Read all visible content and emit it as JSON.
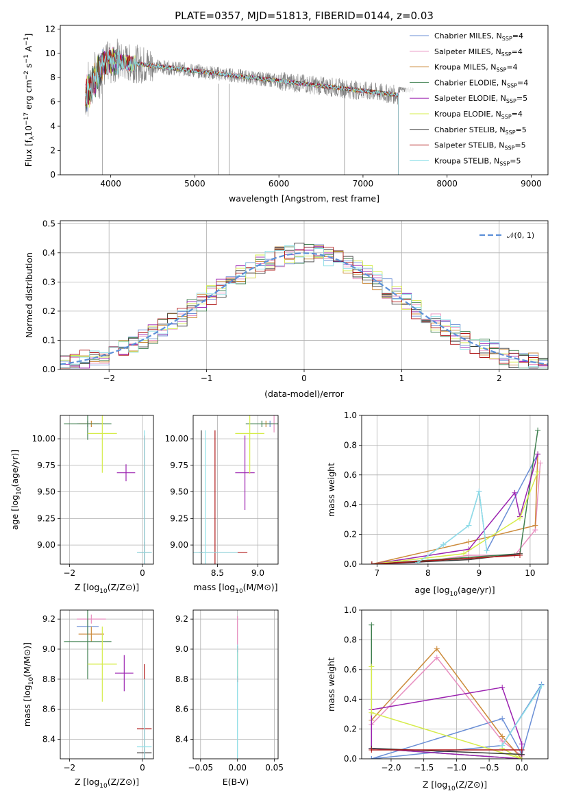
{
  "title": "PLATE=0357, MJD=51813, FIBERID=0144, z=0.03",
  "colors": {
    "Chabrier MILES": "#6b8fd6",
    "Salpeter MILES": "#e88fc0",
    "Kroupa MILES": "#cc8a3a",
    "Chabrier ELODIE": "#3f7f4f",
    "Salpeter ELODIE": "#9b22b0",
    "Kroupa ELODIE": "#d6ec4a",
    "Chabrier STELIB": "#3a3a3a",
    "Salpeter STELIB": "#b01818",
    "Kroupa STELIB": "#8fe0e8",
    "data": "#808080",
    "normal": "#5b8fd8",
    "orange_model": "#e07830"
  },
  "chart_data": [
    {
      "id": "spectrum",
      "type": "line",
      "xlabel": "wavelength [Angstrom, rest frame]",
      "ylabel_main": "Flux [f",
      "ylabel_sub": "λ",
      "ylabel_rest": "10",
      "ylabel_exp": "−17",
      "ylabel_units": " erg cm",
      "ylabel_units_exp": "−2",
      "ylabel_units2": " s",
      "ylabel_units2_exp": "−1",
      "ylabel_units3": " A",
      "ylabel_units3_exp": "−1",
      "ylabel_end": "]",
      "xlim": [
        3400,
        9200
      ],
      "ylim": [
        0,
        12.3
      ],
      "xticks": [
        "4000",
        "5000",
        "6000",
        "7000",
        "8000",
        "9000"
      ],
      "xtick_values": [
        4000,
        5000,
        6000,
        7000,
        8000,
        9000
      ],
      "yticks": [
        "0",
        "2",
        "4",
        "6",
        "8",
        "10",
        "12"
      ],
      "ytick_values": [
        0,
        2,
        4,
        6,
        8,
        10,
        12
      ],
      "data_range": [
        3700,
        7600
      ],
      "model_cutoff": 7420,
      "absorption_lines": [
        3900,
        5280,
        5410,
        6780
      ],
      "legend": [
        {
          "name": "Chabrier MILES",
          "nssp": "4"
        },
        {
          "name": "Salpeter MILES",
          "nssp": "4"
        },
        {
          "name": "Kroupa MILES",
          "nssp": "4"
        },
        {
          "name": "Chabrier ELODIE",
          "nssp": "4"
        },
        {
          "name": "Salpeter ELODIE",
          "nssp": "5"
        },
        {
          "name": "Kroupa ELODIE",
          "nssp": "4"
        },
        {
          "name": "Chabrier STELIB",
          "nssp": "5"
        },
        {
          "name": "Salpeter STELIB",
          "nssp": "5"
        },
        {
          "name": "Kroupa STELIB",
          "nssp": "5"
        }
      ],
      "legend_label_main": "N",
      "legend_label_sub": "SSP"
    },
    {
      "id": "residuals",
      "type": "step",
      "xlabel": "(data-model)/error",
      "ylabel": "Normed distribution",
      "xlim": [
        -2.5,
        2.5
      ],
      "ylim": [
        0,
        0.51
      ],
      "xticks": [
        "−2",
        "−1",
        "0",
        "1",
        "2"
      ],
      "xtick_values": [
        -2,
        -1,
        0,
        1,
        2
      ],
      "yticks": [
        "0.0",
        "0.1",
        "0.2",
        "0.3",
        "0.4",
        "0.5"
      ],
      "ytick_values": [
        0,
        0.1,
        0.2,
        0.3,
        0.4,
        0.5
      ],
      "bin_width": 0.1,
      "legend": "𝒩(0, 1)",
      "legend_position": "top-right",
      "grid": true
    },
    {
      "id": "age-vs-z",
      "type": "scatter",
      "xlabel_main": "Z [log",
      "xlabel_sub": "10",
      "xlabel_end": "(Z/Z⊙)]",
      "ylabel_main": "age  [log",
      "ylabel_sub": "10",
      "ylabel_end": "(age/yr)]",
      "xlim": [
        -2.25,
        0.3
      ],
      "ylim": [
        8.82,
        10.22
      ],
      "xticks": [
        "−2",
        "0"
      ],
      "xtick_values": [
        -2,
        0
      ],
      "yticks": [
        "9.00",
        "9.25",
        "9.50",
        "9.75",
        "10.00"
      ],
      "ytick_values": [
        9.0,
        9.25,
        9.5,
        9.75,
        10.0
      ],
      "points": [
        {
          "model": "Chabrier MILES",
          "x": -1.5,
          "y": 10.14,
          "xerr": 0.3,
          "yerr": 0.03
        },
        {
          "model": "Salpeter MILES",
          "x": -1.5,
          "y": 10.14,
          "xerr": 0.25,
          "yerr": 0.03
        },
        {
          "model": "Kroupa MILES",
          "x": -1.4,
          "y": 10.14,
          "xerr": 0.35,
          "yerr": 0.03
        },
        {
          "model": "Chabrier ELODIE",
          "x": -1.5,
          "y": 10.14,
          "xerr": 0.65,
          "yerr": 0.15
        },
        {
          "model": "Salpeter ELODIE",
          "x": -0.45,
          "y": 9.68,
          "xerr": 0.25,
          "yerr": 0.08
        },
        {
          "model": "Kroupa ELODIE",
          "x": -1.1,
          "y": 10.05,
          "xerr": 0.4,
          "yerr": 0.37
        },
        {
          "model": "Chabrier STELIB",
          "x": 0.05,
          "y": 8.93,
          "xerr": 0.2,
          "yerr": 0.1
        },
        {
          "model": "Salpeter STELIB",
          "x": 0.05,
          "y": 8.93,
          "xerr": 0.15,
          "yerr": 1.1
        },
        {
          "model": "Kroupa STELIB",
          "x": 0.05,
          "y": 8.93,
          "xerr": 0.2,
          "yerr": 1.15
        }
      ]
    },
    {
      "id": "age-vs-mass",
      "type": "scatter",
      "xlabel_main": "mass [log",
      "xlabel_sub": "10",
      "xlabel_end": "(M/M⊙)]",
      "xlim": [
        8.2,
        9.25
      ],
      "ylim": [
        8.82,
        10.22
      ],
      "xticks": [
        "8.5",
        "9.0"
      ],
      "xtick_values": [
        8.5,
        9.0
      ],
      "yticks": [
        "9.00",
        "9.25",
        "9.50",
        "9.75",
        "10.00"
      ],
      "ytick_values": [
        9.0,
        9.25,
        9.5,
        9.75,
        10.0
      ],
      "points": [
        {
          "model": "Chabrier MILES",
          "x": 9.15,
          "y": 10.14,
          "xerr": 0.05,
          "yerr": 0.03
        },
        {
          "model": "Salpeter MILES",
          "x": 9.2,
          "y": 10.14,
          "xerr": 0.05,
          "yerr": 0.08
        },
        {
          "model": "Kroupa MILES",
          "x": 9.1,
          "y": 10.14,
          "xerr": 0.05,
          "yerr": 0.03
        },
        {
          "model": "Chabrier ELODIE",
          "x": 9.05,
          "y": 10.14,
          "xerr": 0.2,
          "yerr": 0.03
        },
        {
          "model": "Salpeter ELODIE",
          "x": 8.84,
          "y": 9.68,
          "xerr": 0.12,
          "yerr": 0.35
        },
        {
          "model": "Kroupa ELODIE",
          "x": 8.9,
          "y": 10.05,
          "xerr": 0.18,
          "yerr": 0.38
        },
        {
          "model": "Chabrier STELIB",
          "x": 8.3,
          "y": 8.93,
          "xerr": 0.02,
          "yerr": 1.15
        },
        {
          "model": "Salpeter STELIB",
          "x": 8.47,
          "y": 8.93,
          "xerr": 0.4,
          "yerr": 1.15
        },
        {
          "model": "Kroupa STELIB",
          "x": 8.35,
          "y": 8.93,
          "xerr": 0.4,
          "yerr": 1.15
        }
      ]
    },
    {
      "id": "weight-vs-age",
      "type": "line",
      "xlabel_main": "age  [log",
      "xlabel_sub": "10",
      "xlabel_end": "(age/yr)]",
      "ylabel": "mass weight",
      "xlim": [
        6.7,
        10.35
      ],
      "ylim": [
        0,
        1.0
      ],
      "xticks": [
        "7",
        "8",
        "9",
        "10"
      ],
      "xtick_values": [
        7,
        8,
        9,
        10
      ],
      "yticks": [
        "0.0",
        "0.2",
        "0.4",
        "0.6",
        "0.8",
        "1.0"
      ],
      "ytick_values": [
        0,
        0.2,
        0.4,
        0.6,
        0.8,
        1.0
      ],
      "grid": true,
      "series": [
        {
          "model": "Chabrier MILES",
          "x": [
            7.8,
            8.3,
            8.8,
            9.0,
            9.15,
            10.15
          ],
          "y": [
            0.01,
            0.13,
            0.26,
            0.49,
            0.09,
            0.74
          ]
        },
        {
          "model": "Salpeter MILES",
          "x": [
            6.9,
            7.8,
            8.8,
            9.7,
            10.1,
            10.2
          ],
          "y": [
            0.0,
            0.01,
            0.06,
            0.06,
            0.23,
            0.68
          ]
        },
        {
          "model": "Kroupa MILES",
          "x": [
            6.9,
            8.8,
            10.1,
            10.15
          ],
          "y": [
            0.0,
            0.15,
            0.26,
            0.74
          ]
        },
        {
          "model": "Chabrier ELODIE",
          "x": [
            6.9,
            9.8,
            10.15
          ],
          "y": [
            0.0,
            0.07,
            0.9
          ]
        },
        {
          "model": "Salpeter ELODIE",
          "x": [
            6.9,
            8.8,
            9.7,
            9.8,
            10.15
          ],
          "y": [
            0.0,
            0.1,
            0.48,
            0.32,
            0.74
          ]
        },
        {
          "model": "Kroupa ELODIE",
          "x": [
            6.9,
            8.7,
            9.8,
            10.15
          ],
          "y": [
            0.0,
            0.07,
            0.31,
            0.62
          ]
        },
        {
          "model": "Chabrier STELIB",
          "x": [
            6.9,
            8.8,
            9.8
          ],
          "y": [
            0.0,
            0.03,
            0.07
          ]
        },
        {
          "model": "Salpeter STELIB",
          "x": [
            6.9,
            9.8
          ],
          "y": [
            0.0,
            0.06
          ]
        },
        {
          "model": "Kroupa STELIB",
          "x": [
            7.8,
            8.3,
            8.8,
            9.0,
            9.15
          ],
          "y": [
            0.01,
            0.13,
            0.26,
            0.49,
            0.09
          ]
        }
      ]
    },
    {
      "id": "mass-vs-z",
      "type": "scatter",
      "xlabel_main": "Z [log",
      "xlabel_sub": "10",
      "xlabel_end": "(Z/Z⊙)]",
      "ylabel_main": "mass [log",
      "ylabel_sub": "10",
      "ylabel_end": "(M/M⊙)]",
      "xlim": [
        -2.25,
        0.3
      ],
      "ylim": [
        8.27,
        9.26
      ],
      "xticks": [
        "−2",
        "0"
      ],
      "xtick_values": [
        -2,
        0
      ],
      "yticks": [
        "8.4",
        "8.6",
        "8.8",
        "9.0",
        "9.2"
      ],
      "ytick_values": [
        8.4,
        8.6,
        8.8,
        9.0,
        9.2
      ],
      "points": [
        {
          "model": "Chabrier MILES",
          "x": -1.5,
          "y": 9.15,
          "xerr": 0.3,
          "yerr": 0.05
        },
        {
          "model": "Salpeter MILES",
          "x": -1.4,
          "y": 9.2,
          "xerr": 0.4,
          "yerr": 0.03
        },
        {
          "model": "Kroupa MILES",
          "x": -1.4,
          "y": 9.1,
          "xerr": 0.35,
          "yerr": 0.05
        },
        {
          "model": "Chabrier ELODIE",
          "x": -1.5,
          "y": 9.05,
          "xerr": 0.65,
          "yerr": 0.25
        },
        {
          "model": "Salpeter ELODIE",
          "x": -0.5,
          "y": 8.84,
          "xerr": 0.25,
          "yerr": 0.12
        },
        {
          "model": "Kroupa ELODIE",
          "x": -1.1,
          "y": 8.9,
          "xerr": 0.4,
          "yerr": 0.25
        },
        {
          "model": "Chabrier STELIB",
          "x": 0.05,
          "y": 8.31,
          "xerr": 0.2,
          "yerr": 0.03
        },
        {
          "model": "Salpeter STELIB",
          "x": 0.05,
          "y": 8.47,
          "xerr": 0.2,
          "yerr": 0.43
        },
        {
          "model": "Kroupa STELIB",
          "x": 0.05,
          "y": 8.35,
          "xerr": 0.2,
          "yerr": 0.45
        }
      ]
    },
    {
      "id": "mass-vs-ebv",
      "type": "scatter",
      "xlabel": "E(B-V)",
      "xlim": [
        -0.06,
        0.055
      ],
      "ylim": [
        8.27,
        9.26
      ],
      "xticks": [
        "−0.05",
        "0.00",
        "0.05"
      ],
      "xtick_values": [
        -0.05,
        0.0,
        0.05
      ],
      "yticks": [
        "8.4",
        "8.6",
        "8.8",
        "9.0",
        "9.2"
      ],
      "ytick_values": [
        8.4,
        8.6,
        8.8,
        9.0,
        9.2
      ],
      "points": [
        {
          "model": "Salpeter MILES",
          "x": 0.0,
          "y": 9.05,
          "xerr": 0.0,
          "yerr": 0.17
        },
        {
          "model": "Salpeter STELIB",
          "x": 0.0,
          "y": 8.9,
          "xerr": 0.0,
          "yerr": 0.12
        },
        {
          "model": "Kroupa ELODIE",
          "x": 0.0,
          "y": 8.9,
          "xerr": 0.0,
          "yerr": 0.08
        },
        {
          "model": "Kroupa STELIB",
          "x": 0.0,
          "y": 8.65,
          "xerr": 0.0,
          "yerr": 0.38
        }
      ]
    },
    {
      "id": "weight-vs-z",
      "type": "line",
      "xlabel_main": "Z [log",
      "xlabel_sub": "10",
      "xlabel_end": "(Z/Z⊙)]",
      "ylabel": "mass weight",
      "xlim": [
        -2.45,
        0.4
      ],
      "ylim": [
        0,
        1.0
      ],
      "xticks": [
        "−2.0",
        "−1.5",
        "−1.0",
        "−0.5",
        "0.0"
      ],
      "xtick_values": [
        -2.0,
        -1.5,
        -1.0,
        -0.5,
        0.0
      ],
      "yticks": [
        "0.0",
        "0.2",
        "0.4",
        "0.6",
        "0.8",
        "1.0"
      ],
      "ytick_values": [
        0,
        0.2,
        0.4,
        0.6,
        0.8,
        1.0
      ],
      "grid": true,
      "series": [
        {
          "model": "Chabrier MILES",
          "x": [
            -2.3,
            -0.3,
            0.0,
            0.3,
            -0.3,
            -2.3
          ],
          "y": [
            0.0,
            0.27,
            0.03,
            0.5,
            0.09,
            0.0
          ]
        },
        {
          "model": "Salpeter MILES",
          "x": [
            -2.3,
            -1.3,
            -0.3,
            0.0
          ],
          "y": [
            0.23,
            0.68,
            0.12,
            0.02
          ]
        },
        {
          "model": "Kroupa MILES",
          "x": [
            -2.3,
            -1.3,
            -0.3,
            0.0
          ],
          "y": [
            0.26,
            0.74,
            0.15,
            0.0
          ]
        },
        {
          "model": "Chabrier ELODIE",
          "x": [
            -2.3,
            -2.3,
            0.0,
            -2.3
          ],
          "y": [
            0.9,
            0.07,
            0.0,
            0.07
          ]
        },
        {
          "model": "Salpeter ELODIE",
          "x": [
            -2.3,
            -2.3,
            -0.3,
            0.0,
            0.0,
            -2.3
          ],
          "y": [
            0.07,
            0.33,
            0.48,
            0.1,
            0.0,
            0.07
          ]
        },
        {
          "model": "Kroupa ELODIE",
          "x": [
            -2.3,
            -2.3,
            0.0,
            -0.3
          ],
          "y": [
            0.62,
            0.31,
            0.0,
            0.07
          ]
        },
        {
          "model": "Chabrier STELIB",
          "x": [
            -2.3,
            0.0
          ],
          "y": [
            0.07,
            0.03
          ]
        },
        {
          "model": "Salpeter STELIB",
          "x": [
            -2.3,
            0.0
          ],
          "y": [
            0.06,
            0.06
          ]
        },
        {
          "model": "Kroupa STELIB",
          "x": [
            -0.3,
            0.3
          ],
          "y": [
            0.09,
            0.49
          ]
        }
      ]
    }
  ]
}
